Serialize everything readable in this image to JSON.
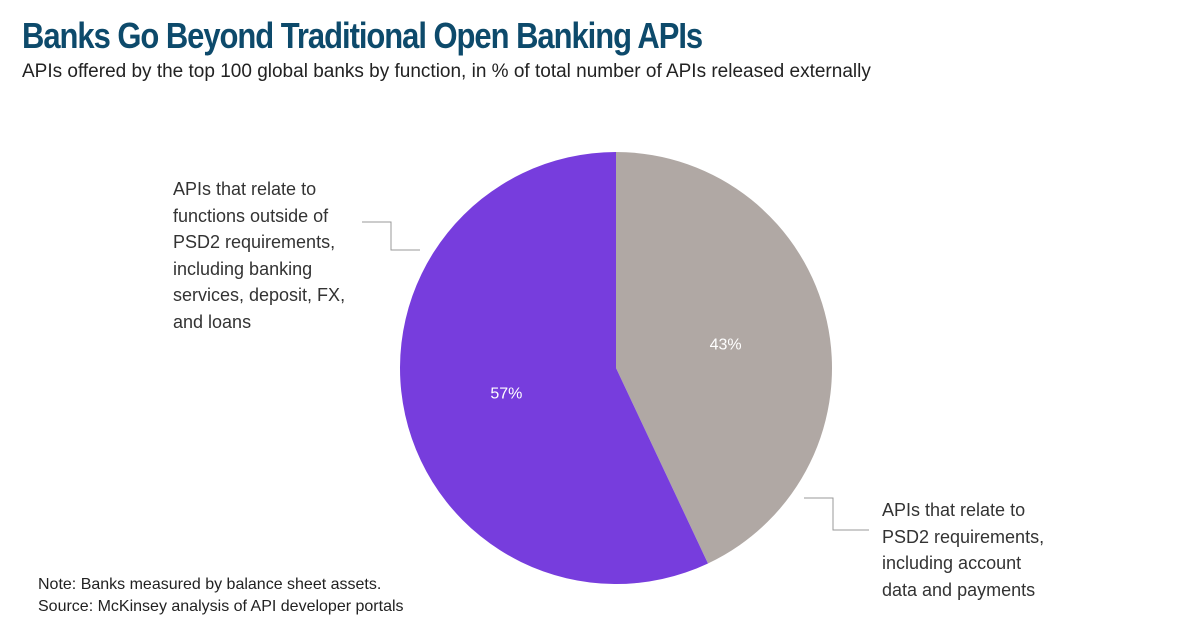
{
  "title": "Banks Go Beyond Traditional Open Banking APIs",
  "subtitle": "APIs offered by the top 100 global banks by function, in % of total number of APIs released externally",
  "chart_data": {
    "type": "pie",
    "slices": [
      {
        "label_lines": [
          "APIs that relate to",
          "PSD2 requirements,",
          "including account",
          "data and payments"
        ],
        "value": 43,
        "value_label": "43%",
        "color": "#b0a8a4"
      },
      {
        "label_lines": [
          "APIs that relate to",
          "functions outside of",
          "PSD2 requirements,",
          "including banking",
          "services, deposit, FX,",
          "and loans"
        ],
        "value": 57,
        "value_label": "57%",
        "color": "#773ddd"
      }
    ],
    "value_label_color": "#ffffff",
    "start_angle": "12 o'clock",
    "direction": "clockwise"
  },
  "footer": {
    "note": "Note: Banks measured by balance sheet assets.",
    "source": "Source: McKinsey analysis of API developer portals"
  },
  "colors": {
    "title": "#0d4a6b",
    "leader_line": "#999999"
  }
}
